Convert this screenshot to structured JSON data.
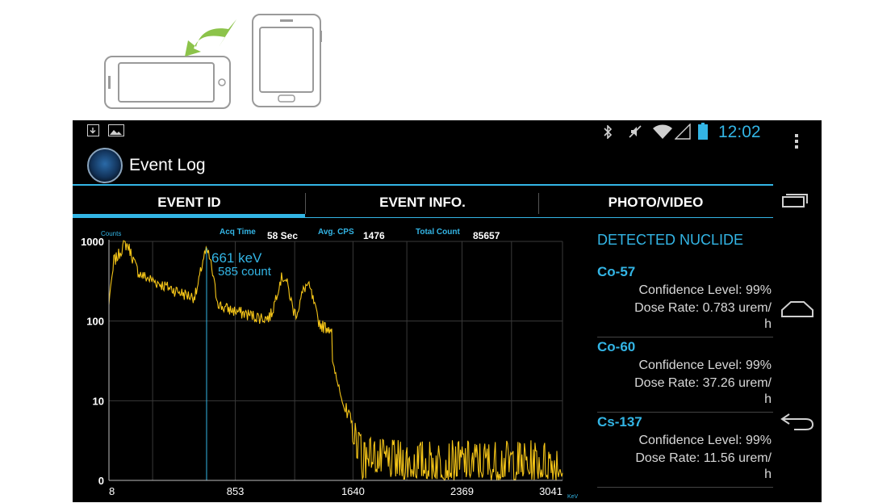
{
  "status_bar": {
    "time": "12:02",
    "left_icons": [
      "download-icon",
      "image-icon"
    ],
    "right_icons": [
      "bluetooth-icon",
      "mute-icon",
      "wifi-icon",
      "signal-icon",
      "battery-icon"
    ]
  },
  "action_bar": {
    "title": "Event Log"
  },
  "tabs": [
    {
      "label": "EVENT ID",
      "active": true
    },
    {
      "label": "EVENT INFO.",
      "active": false
    },
    {
      "label": "PHOTO/VIDEO",
      "active": false
    }
  ],
  "spectrum": {
    "acq_time_label": "Acq Time",
    "acq_time_value": "58 Sec",
    "avg_cps_label": "Avg. CPS",
    "avg_cps_value": "1476",
    "total_count_label": "Total Count",
    "total_count_value": "85657"
  },
  "chart_data": {
    "type": "line",
    "ylabel": "Counts",
    "xlabel": "KeV",
    "y_scale": "log",
    "y_ticks": [
      "1000",
      "100",
      "10",
      "0"
    ],
    "x_ticks": [
      "8",
      "853",
      "1640",
      "2369",
      "3041"
    ],
    "xlim": [
      8,
      3041
    ],
    "marker": {
      "energy_kev": 661,
      "label": "661 keV",
      "count_label": "585 count"
    },
    "peaks_kev": [
      122,
      661,
      1173,
      1332
    ],
    "grid": true
  },
  "nuclide_panel": {
    "title": "DETECTED NUCLIDE",
    "items": [
      {
        "name": "Co-57",
        "confidence": "Confidence Level: 99%",
        "dose": "Dose Rate: 0.783 urem/",
        "dose_unit": "h"
      },
      {
        "name": "Co-60",
        "confidence": "Confidence Level: 99%",
        "dose": "Dose Rate: 37.26 urem/",
        "dose_unit": "h"
      },
      {
        "name": "Cs-137",
        "confidence": "Confidence Level: 99%",
        "dose": "Dose Rate: 11.56 urem/",
        "dose_unit": "h"
      }
    ]
  },
  "nav_bar": {
    "buttons": [
      "overflow-menu-icon",
      "recent-apps-icon",
      "home-icon",
      "back-icon"
    ]
  },
  "colors": {
    "accent": "#33b5e5",
    "trace": "#f5c518",
    "background": "#000000"
  }
}
